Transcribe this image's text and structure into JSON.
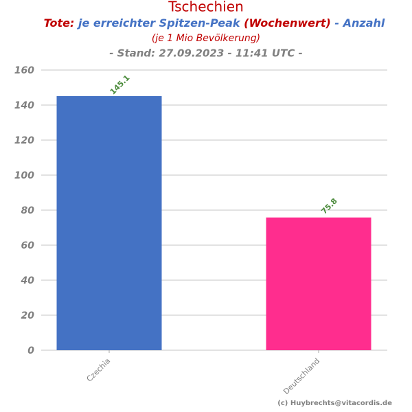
{
  "chart_data": {
    "type": "bar",
    "title": "Tschechien",
    "title_color": "#c00000",
    "subtitle": [
      "Tote:",
      "je erreichter Spitzen-Peak",
      "(Wochenwert)",
      "- Anzahl"
    ],
    "subtitle_colors": [
      "#c00000",
      "#4472c4",
      "#c00000",
      "#4472c4"
    ],
    "note": "(je 1 Mio Bevölkerung)",
    "stand": "- Stand: 27.09.2023 - 11:41 UTC -",
    "credit": "(c) Huybrechts@vitacordis.de",
    "categories": [
      "Czechia",
      "Deutschland"
    ],
    "values": [
      145.1,
      75.8
    ],
    "colors": [
      "#4472c4",
      "#ff2d8e"
    ],
    "ylim": [
      0,
      160
    ],
    "yticks": [
      0,
      20,
      40,
      60,
      80,
      100,
      120,
      140,
      160
    ],
    "grid": true
  }
}
